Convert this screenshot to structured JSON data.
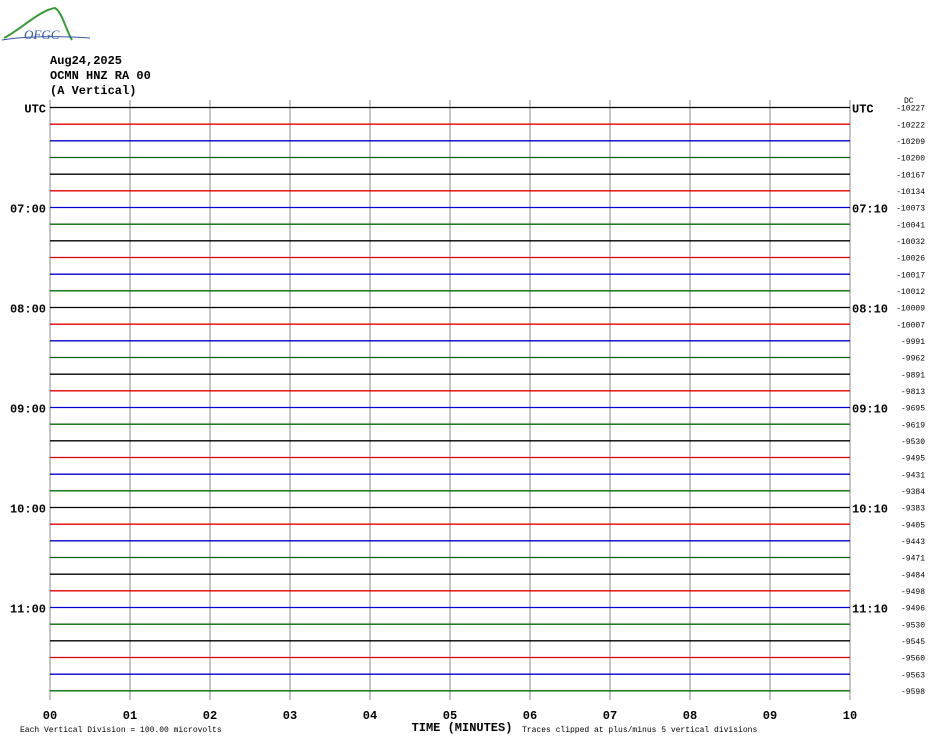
{
  "logo": "OFGC",
  "header": {
    "date": "Aug24,2025",
    "station": "OCMN HNZ RA 00",
    "component": "(A Vertical)"
  },
  "chart_data": {
    "type": "helicorder",
    "dc_label": "DC",
    "xlabel": "TIME (MINUTES)",
    "scale_note": "Each Vertical Division =  100.00 microvolts",
    "clip_note": "Traces clipped at plus/minus 5 vertical divisions",
    "xlim": [
      0,
      10
    ],
    "xticks": [
      {
        "value": 0,
        "label": "00"
      },
      {
        "value": 1,
        "label": "01"
      },
      {
        "value": 2,
        "label": "02"
      },
      {
        "value": 3,
        "label": "03"
      },
      {
        "value": 4,
        "label": "04"
      },
      {
        "value": 5,
        "label": "05"
      },
      {
        "value": 6,
        "label": "06"
      },
      {
        "value": 7,
        "label": "07"
      },
      {
        "value": 8,
        "label": "08"
      },
      {
        "value": 9,
        "label": "09"
      },
      10
    ],
    "grid": true,
    "trace_colors": [
      "#000000",
      "#e00000",
      "#0000d0",
      "#006a00"
    ],
    "left_labels": [
      "UTC",
      null,
      null,
      null,
      null,
      null,
      "07:00",
      null,
      null,
      null,
      null,
      null,
      "08:00",
      null,
      null,
      null,
      null,
      null,
      "09:00",
      null,
      null,
      null,
      null,
      null,
      "10:00",
      null,
      null,
      null,
      null,
      null,
      "11:00",
      null,
      null,
      null,
      null,
      null
    ],
    "right_labels": [
      "UTC",
      null,
      null,
      null,
      null,
      null,
      "07:10",
      null,
      null,
      null,
      null,
      null,
      "08:10",
      null,
      null,
      null,
      null,
      null,
      "09:10",
      null,
      null,
      null,
      null,
      null,
      "10:10",
      null,
      null,
      null,
      null,
      null,
      "11:10",
      null,
      null,
      null,
      null,
      null
    ],
    "offsets": [
      -10227,
      -10222,
      -10209,
      -10200,
      -10167,
      -10134,
      -10073,
      -10041,
      -10032,
      -10026,
      -10017,
      -10012,
      -10009,
      -10007,
      -9991,
      -9962,
      -9891,
      -9813,
      -9695,
      -9619,
      -9530,
      -9495,
      -9431,
      -9384,
      -9383,
      -9405,
      -9443,
      -9471,
      -9484,
      -9498,
      -9496,
      -9530,
      -9545,
      -9560,
      -9563,
      -9598
    ]
  }
}
